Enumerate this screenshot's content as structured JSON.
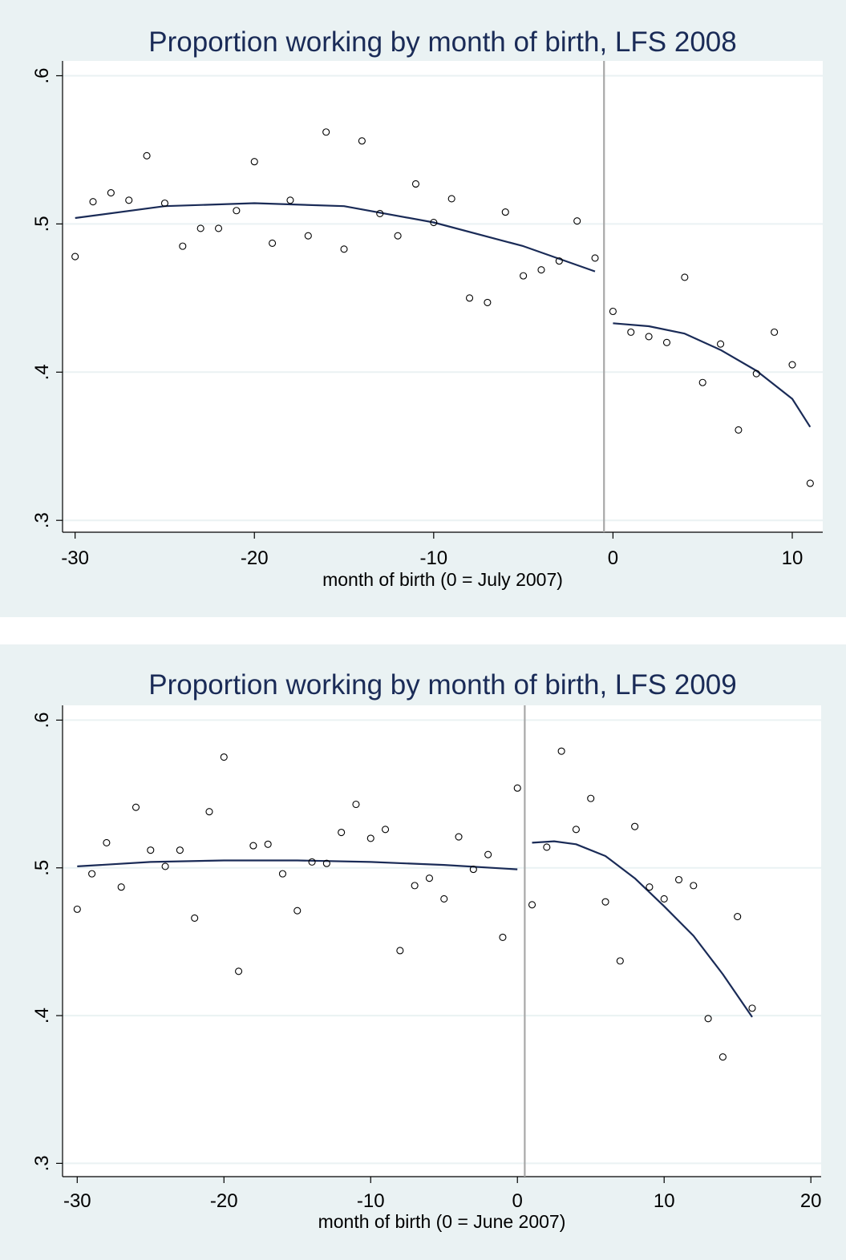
{
  "colors": {
    "panel_bg": "#eaf2f3",
    "plot_bg": "#ffffff",
    "grid": "#eaf2f3",
    "fit_line": "#1a2b57",
    "cutoff_line": "#a8a8a8",
    "title": "#1a2b57"
  },
  "chart_data": [
    {
      "type": "scatter",
      "title": "Proportion working by month of birth, LFS 2008",
      "xlabel": "month of birth (0 = July 2007)",
      "ylabel": "",
      "xlim": [
        -30.7,
        11.7
      ],
      "ylim": [
        0.292,
        0.61
      ],
      "xticks": [
        -30,
        -20,
        -10,
        0,
        10
      ],
      "xtick_labels": [
        "-30",
        "-20",
        "-10",
        "0",
        "10"
      ],
      "yticks": [
        0.3,
        0.4,
        0.5,
        0.6
      ],
      "ytick_labels": [
        ".3",
        ".4",
        ".5",
        ".6"
      ],
      "grid": true,
      "cutoff_x": -0.5,
      "points": [
        [
          -30,
          0.478
        ],
        [
          -29,
          0.515
        ],
        [
          -28,
          0.521
        ],
        [
          -27,
          0.516
        ],
        [
          -26,
          0.546
        ],
        [
          -25,
          0.514
        ],
        [
          -24,
          0.485
        ],
        [
          -23,
          0.497
        ],
        [
          -22,
          0.497
        ],
        [
          -21,
          0.509
        ],
        [
          -20,
          0.542
        ],
        [
          -19,
          0.487
        ],
        [
          -18,
          0.516
        ],
        [
          -17,
          0.492
        ],
        [
          -16,
          0.562
        ],
        [
          -15,
          0.483
        ],
        [
          -14,
          0.556
        ],
        [
          -13,
          0.507
        ],
        [
          -12,
          0.492
        ],
        [
          -11,
          0.527
        ],
        [
          -10,
          0.501
        ],
        [
          -9,
          0.517
        ],
        [
          -8,
          0.45
        ],
        [
          -7,
          0.447
        ],
        [
          -6,
          0.508
        ],
        [
          -5,
          0.465
        ],
        [
          -4,
          0.469
        ],
        [
          -3,
          0.475
        ],
        [
          -2,
          0.502
        ],
        [
          -1,
          0.477
        ],
        [
          0,
          0.441
        ],
        [
          1,
          0.427
        ],
        [
          2,
          0.424
        ],
        [
          3,
          0.42
        ],
        [
          4,
          0.464
        ],
        [
          5,
          0.393
        ],
        [
          6,
          0.419
        ],
        [
          7,
          0.361
        ],
        [
          8,
          0.399
        ],
        [
          9,
          0.427
        ],
        [
          10,
          0.405
        ],
        [
          11,
          0.325
        ]
      ],
      "fit_segments": [
        {
          "points": [
            [
              -30,
              0.504
            ],
            [
              -25,
              0.512
            ],
            [
              -20,
              0.514
            ],
            [
              -15,
              0.512
            ],
            [
              -10,
              0.501
            ],
            [
              -5,
              0.485
            ],
            [
              -1,
              0.468
            ]
          ]
        },
        {
          "points": [
            [
              0,
              0.433
            ],
            [
              2,
              0.431
            ],
            [
              4,
              0.426
            ],
            [
              6,
              0.415
            ],
            [
              8,
              0.401
            ],
            [
              10,
              0.382
            ],
            [
              11,
              0.363
            ]
          ]
        }
      ]
    },
    {
      "type": "scatter",
      "title": "Proportion working by month of birth, LFS 2009",
      "xlabel": "month of birth (0 = June 2007)",
      "ylabel": "",
      "xlim": [
        -31,
        20.7
      ],
      "ylim": [
        0.291,
        0.61
      ],
      "xticks": [
        -30,
        -20,
        -10,
        0,
        10,
        20
      ],
      "xtick_labels": [
        "-30",
        "-20",
        "-10",
        "0",
        "10",
        "20"
      ],
      "yticks": [
        0.3,
        0.4,
        0.5,
        0.6
      ],
      "ytick_labels": [
        ".3",
        ".4",
        ".5",
        ".6"
      ],
      "grid": true,
      "cutoff_x": 0.5,
      "points": [
        [
          -30,
          0.472
        ],
        [
          -29,
          0.496
        ],
        [
          -28,
          0.517
        ],
        [
          -27,
          0.487
        ],
        [
          -26,
          0.541
        ],
        [
          -25,
          0.512
        ],
        [
          -24,
          0.501
        ],
        [
          -23,
          0.512
        ],
        [
          -22,
          0.466
        ],
        [
          -21,
          0.538
        ],
        [
          -20,
          0.575
        ],
        [
          -19,
          0.43
        ],
        [
          -18,
          0.515
        ],
        [
          -17,
          0.516
        ],
        [
          -16,
          0.496
        ],
        [
          -15,
          0.471
        ],
        [
          -14,
          0.504
        ],
        [
          -13,
          0.503
        ],
        [
          -12,
          0.524
        ],
        [
          -11,
          0.543
        ],
        [
          -10,
          0.52
        ],
        [
          -9,
          0.526
        ],
        [
          -8,
          0.444
        ],
        [
          -7,
          0.488
        ],
        [
          -6,
          0.493
        ],
        [
          -5,
          0.479
        ],
        [
          -4,
          0.521
        ],
        [
          -3,
          0.499
        ],
        [
          -2,
          0.509
        ],
        [
          -1,
          0.453
        ],
        [
          0,
          0.554
        ],
        [
          1,
          0.475
        ],
        [
          2,
          0.514
        ],
        [
          3,
          0.579
        ],
        [
          4,
          0.526
        ],
        [
          5,
          0.547
        ],
        [
          6,
          0.477
        ],
        [
          7,
          0.437
        ],
        [
          8,
          0.528
        ],
        [
          9,
          0.487
        ],
        [
          10,
          0.479
        ],
        [
          11,
          0.492
        ],
        [
          12,
          0.488
        ],
        [
          13,
          0.398
        ],
        [
          14,
          0.372
        ],
        [
          15,
          0.467
        ],
        [
          16,
          0.405
        ]
      ],
      "fit_segments": [
        {
          "points": [
            [
              -30,
              0.501
            ],
            [
              -25,
              0.504
            ],
            [
              -20,
              0.505
            ],
            [
              -15,
              0.505
            ],
            [
              -10,
              0.504
            ],
            [
              -5,
              0.502
            ],
            [
              0,
              0.499
            ]
          ]
        },
        {
          "points": [
            [
              1,
              0.517
            ],
            [
              2.5,
              0.518
            ],
            [
              4,
              0.516
            ],
            [
              6,
              0.508
            ],
            [
              8,
              0.493
            ],
            [
              10,
              0.474
            ],
            [
              12,
              0.454
            ],
            [
              14,
              0.428
            ],
            [
              16,
              0.399
            ]
          ]
        }
      ]
    }
  ]
}
